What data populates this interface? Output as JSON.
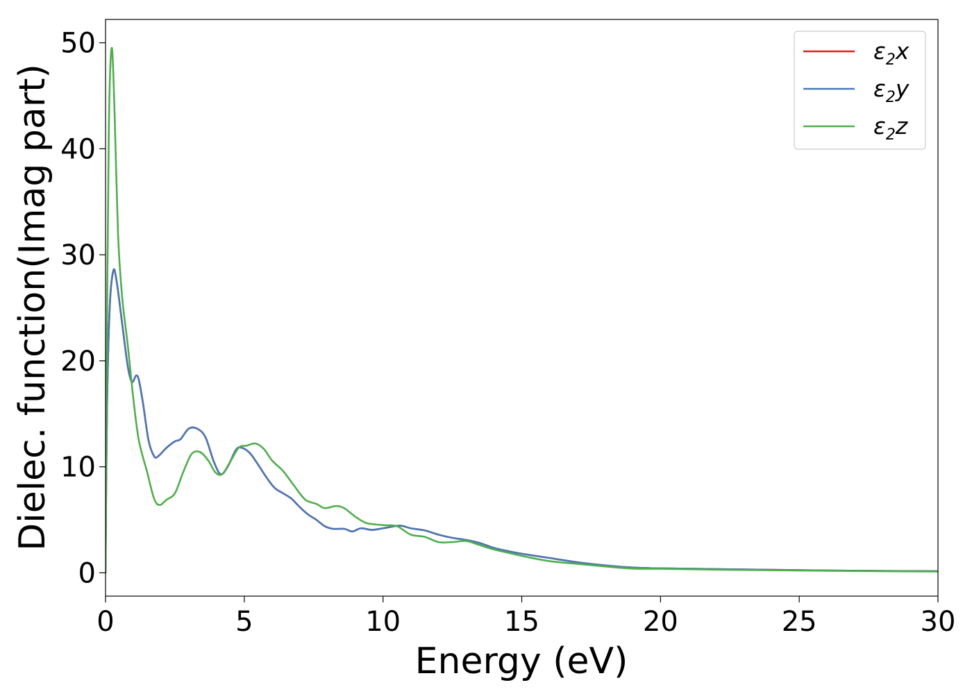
{
  "chart_data": {
    "type": "line",
    "title": "",
    "xlabel": "Energy (eV)",
    "ylabel": "Dielec. function(Imag part)",
    "xlim": [
      0,
      30
    ],
    "ylim": [
      -2.2,
      52.2
    ],
    "xticks": [
      0,
      5,
      10,
      15,
      20,
      25,
      30
    ],
    "yticks": [
      0,
      10,
      20,
      30,
      40,
      50
    ],
    "grid": false,
    "legend_position": "top-right",
    "series": [
      {
        "name": "ε₂x",
        "legend": {
          "base": "ε",
          "sub": "2",
          "suffix": "x"
        },
        "color": "#e41a1c",
        "points": [
          [
            0,
            0
          ],
          [
            0.05,
            15
          ],
          [
            0.15,
            25
          ],
          [
            0.28,
            28.5
          ],
          [
            0.4,
            27.5
          ],
          [
            0.6,
            23.5
          ],
          [
            0.8,
            19.5
          ],
          [
            0.95,
            18.0
          ],
          [
            1.1,
            18.6
          ],
          [
            1.2,
            18.2
          ],
          [
            1.35,
            16
          ],
          [
            1.55,
            12.5
          ],
          [
            1.75,
            11.0
          ],
          [
            1.9,
            11.0
          ],
          [
            2.2,
            11.8
          ],
          [
            2.5,
            12.4
          ],
          [
            2.7,
            12.6
          ],
          [
            3.0,
            13.6
          ],
          [
            3.3,
            13.6
          ],
          [
            3.6,
            12.8
          ],
          [
            3.9,
            10.5
          ],
          [
            4.15,
            9.3
          ],
          [
            4.4,
            10.0
          ],
          [
            4.7,
            11.6
          ],
          [
            4.9,
            11.8
          ],
          [
            5.2,
            11.3
          ],
          [
            5.5,
            10.2
          ],
          [
            5.8,
            9.0
          ],
          [
            6.1,
            8.0
          ],
          [
            6.4,
            7.5
          ],
          [
            6.7,
            7.0
          ],
          [
            7.0,
            6.2
          ],
          [
            7.3,
            5.5
          ],
          [
            7.6,
            5.0
          ],
          [
            7.9,
            4.4
          ],
          [
            8.2,
            4.15
          ],
          [
            8.6,
            4.15
          ],
          [
            8.9,
            3.9
          ],
          [
            9.2,
            4.2
          ],
          [
            9.6,
            4.05
          ],
          [
            10.0,
            4.2
          ],
          [
            10.6,
            4.45
          ],
          [
            11.0,
            4.2
          ],
          [
            11.5,
            4.0
          ],
          [
            12.0,
            3.6
          ],
          [
            12.5,
            3.3
          ],
          [
            13.0,
            3.1
          ],
          [
            13.5,
            2.8
          ],
          [
            14.0,
            2.35
          ],
          [
            14.5,
            2.05
          ],
          [
            15.0,
            1.8
          ],
          [
            16.0,
            1.4
          ],
          [
            17.0,
            1.0
          ],
          [
            18.0,
            0.7
          ],
          [
            19.0,
            0.5
          ],
          [
            20.0,
            0.42
          ],
          [
            22.0,
            0.35
          ],
          [
            25.0,
            0.25
          ],
          [
            28.0,
            0.18
          ],
          [
            30.0,
            0.15
          ]
        ]
      },
      {
        "name": "ε₂y",
        "legend": {
          "base": "ε",
          "sub": "2",
          "suffix": "y"
        },
        "color": "#4878b8",
        "points": [
          [
            0,
            0
          ],
          [
            0.05,
            15
          ],
          [
            0.15,
            25
          ],
          [
            0.28,
            28.5
          ],
          [
            0.4,
            27.5
          ],
          [
            0.6,
            23.5
          ],
          [
            0.8,
            19.5
          ],
          [
            0.95,
            18.0
          ],
          [
            1.1,
            18.6
          ],
          [
            1.2,
            18.2
          ],
          [
            1.35,
            16
          ],
          [
            1.55,
            12.5
          ],
          [
            1.75,
            11.0
          ],
          [
            1.9,
            11.0
          ],
          [
            2.2,
            11.8
          ],
          [
            2.5,
            12.4
          ],
          [
            2.7,
            12.6
          ],
          [
            3.0,
            13.6
          ],
          [
            3.3,
            13.6
          ],
          [
            3.6,
            12.8
          ],
          [
            3.9,
            10.5
          ],
          [
            4.15,
            9.3
          ],
          [
            4.4,
            10.0
          ],
          [
            4.7,
            11.6
          ],
          [
            4.9,
            11.8
          ],
          [
            5.2,
            11.3
          ],
          [
            5.5,
            10.2
          ],
          [
            5.8,
            9.0
          ],
          [
            6.1,
            8.0
          ],
          [
            6.4,
            7.5
          ],
          [
            6.7,
            7.0
          ],
          [
            7.0,
            6.2
          ],
          [
            7.3,
            5.5
          ],
          [
            7.6,
            5.0
          ],
          [
            7.9,
            4.4
          ],
          [
            8.2,
            4.15
          ],
          [
            8.6,
            4.15
          ],
          [
            8.9,
            3.9
          ],
          [
            9.2,
            4.2
          ],
          [
            9.6,
            4.05
          ],
          [
            10.0,
            4.2
          ],
          [
            10.6,
            4.45
          ],
          [
            11.0,
            4.2
          ],
          [
            11.5,
            4.0
          ],
          [
            12.0,
            3.6
          ],
          [
            12.5,
            3.3
          ],
          [
            13.0,
            3.1
          ],
          [
            13.5,
            2.8
          ],
          [
            14.0,
            2.35
          ],
          [
            14.5,
            2.05
          ],
          [
            15.0,
            1.8
          ],
          [
            16.0,
            1.4
          ],
          [
            17.0,
            1.0
          ],
          [
            18.0,
            0.7
          ],
          [
            19.0,
            0.5
          ],
          [
            20.0,
            0.42
          ],
          [
            22.0,
            0.35
          ],
          [
            25.0,
            0.25
          ],
          [
            28.0,
            0.18
          ],
          [
            30.0,
            0.15
          ]
        ]
      },
      {
        "name": "ε₂z",
        "legend": {
          "base": "ε",
          "sub": "2",
          "suffix": "z"
        },
        "color": "#4daf4a",
        "points": [
          [
            0,
            0
          ],
          [
            0.05,
            22
          ],
          [
            0.12,
            42
          ],
          [
            0.22,
            49.5
          ],
          [
            0.32,
            44
          ],
          [
            0.45,
            32
          ],
          [
            0.6,
            26
          ],
          [
            0.8,
            21.5
          ],
          [
            1.0,
            16.5
          ],
          [
            1.2,
            12.5
          ],
          [
            1.5,
            9.5
          ],
          [
            1.75,
            7.0
          ],
          [
            1.95,
            6.4
          ],
          [
            2.2,
            6.9
          ],
          [
            2.5,
            7.5
          ],
          [
            2.8,
            9.5
          ],
          [
            3.1,
            11.2
          ],
          [
            3.4,
            11.4
          ],
          [
            3.7,
            10.6
          ],
          [
            3.95,
            9.5
          ],
          [
            4.2,
            9.3
          ],
          [
            4.5,
            10.5
          ],
          [
            4.8,
            11.8
          ],
          [
            5.1,
            12.0
          ],
          [
            5.4,
            12.2
          ],
          [
            5.7,
            11.7
          ],
          [
            6.0,
            10.6
          ],
          [
            6.4,
            9.6
          ],
          [
            6.8,
            8.2
          ],
          [
            7.2,
            6.9
          ],
          [
            7.6,
            6.5
          ],
          [
            7.9,
            6.1
          ],
          [
            8.3,
            6.3
          ],
          [
            8.6,
            6.1
          ],
          [
            9.0,
            5.3
          ],
          [
            9.4,
            4.7
          ],
          [
            10.0,
            4.5
          ],
          [
            10.5,
            4.4
          ],
          [
            11.0,
            3.6
          ],
          [
            11.5,
            3.4
          ],
          [
            12.0,
            2.9
          ],
          [
            12.5,
            2.9
          ],
          [
            13.0,
            3.0
          ],
          [
            13.5,
            2.6
          ],
          [
            14.0,
            2.2
          ],
          [
            14.5,
            1.9
          ],
          [
            15.0,
            1.6
          ],
          [
            16.0,
            1.1
          ],
          [
            17.0,
            0.85
          ],
          [
            18.0,
            0.6
          ],
          [
            19.0,
            0.4
          ],
          [
            20.0,
            0.38
          ],
          [
            22.0,
            0.3
          ],
          [
            25.0,
            0.22
          ],
          [
            28.0,
            0.15
          ],
          [
            30.0,
            0.12
          ]
        ]
      }
    ]
  }
}
